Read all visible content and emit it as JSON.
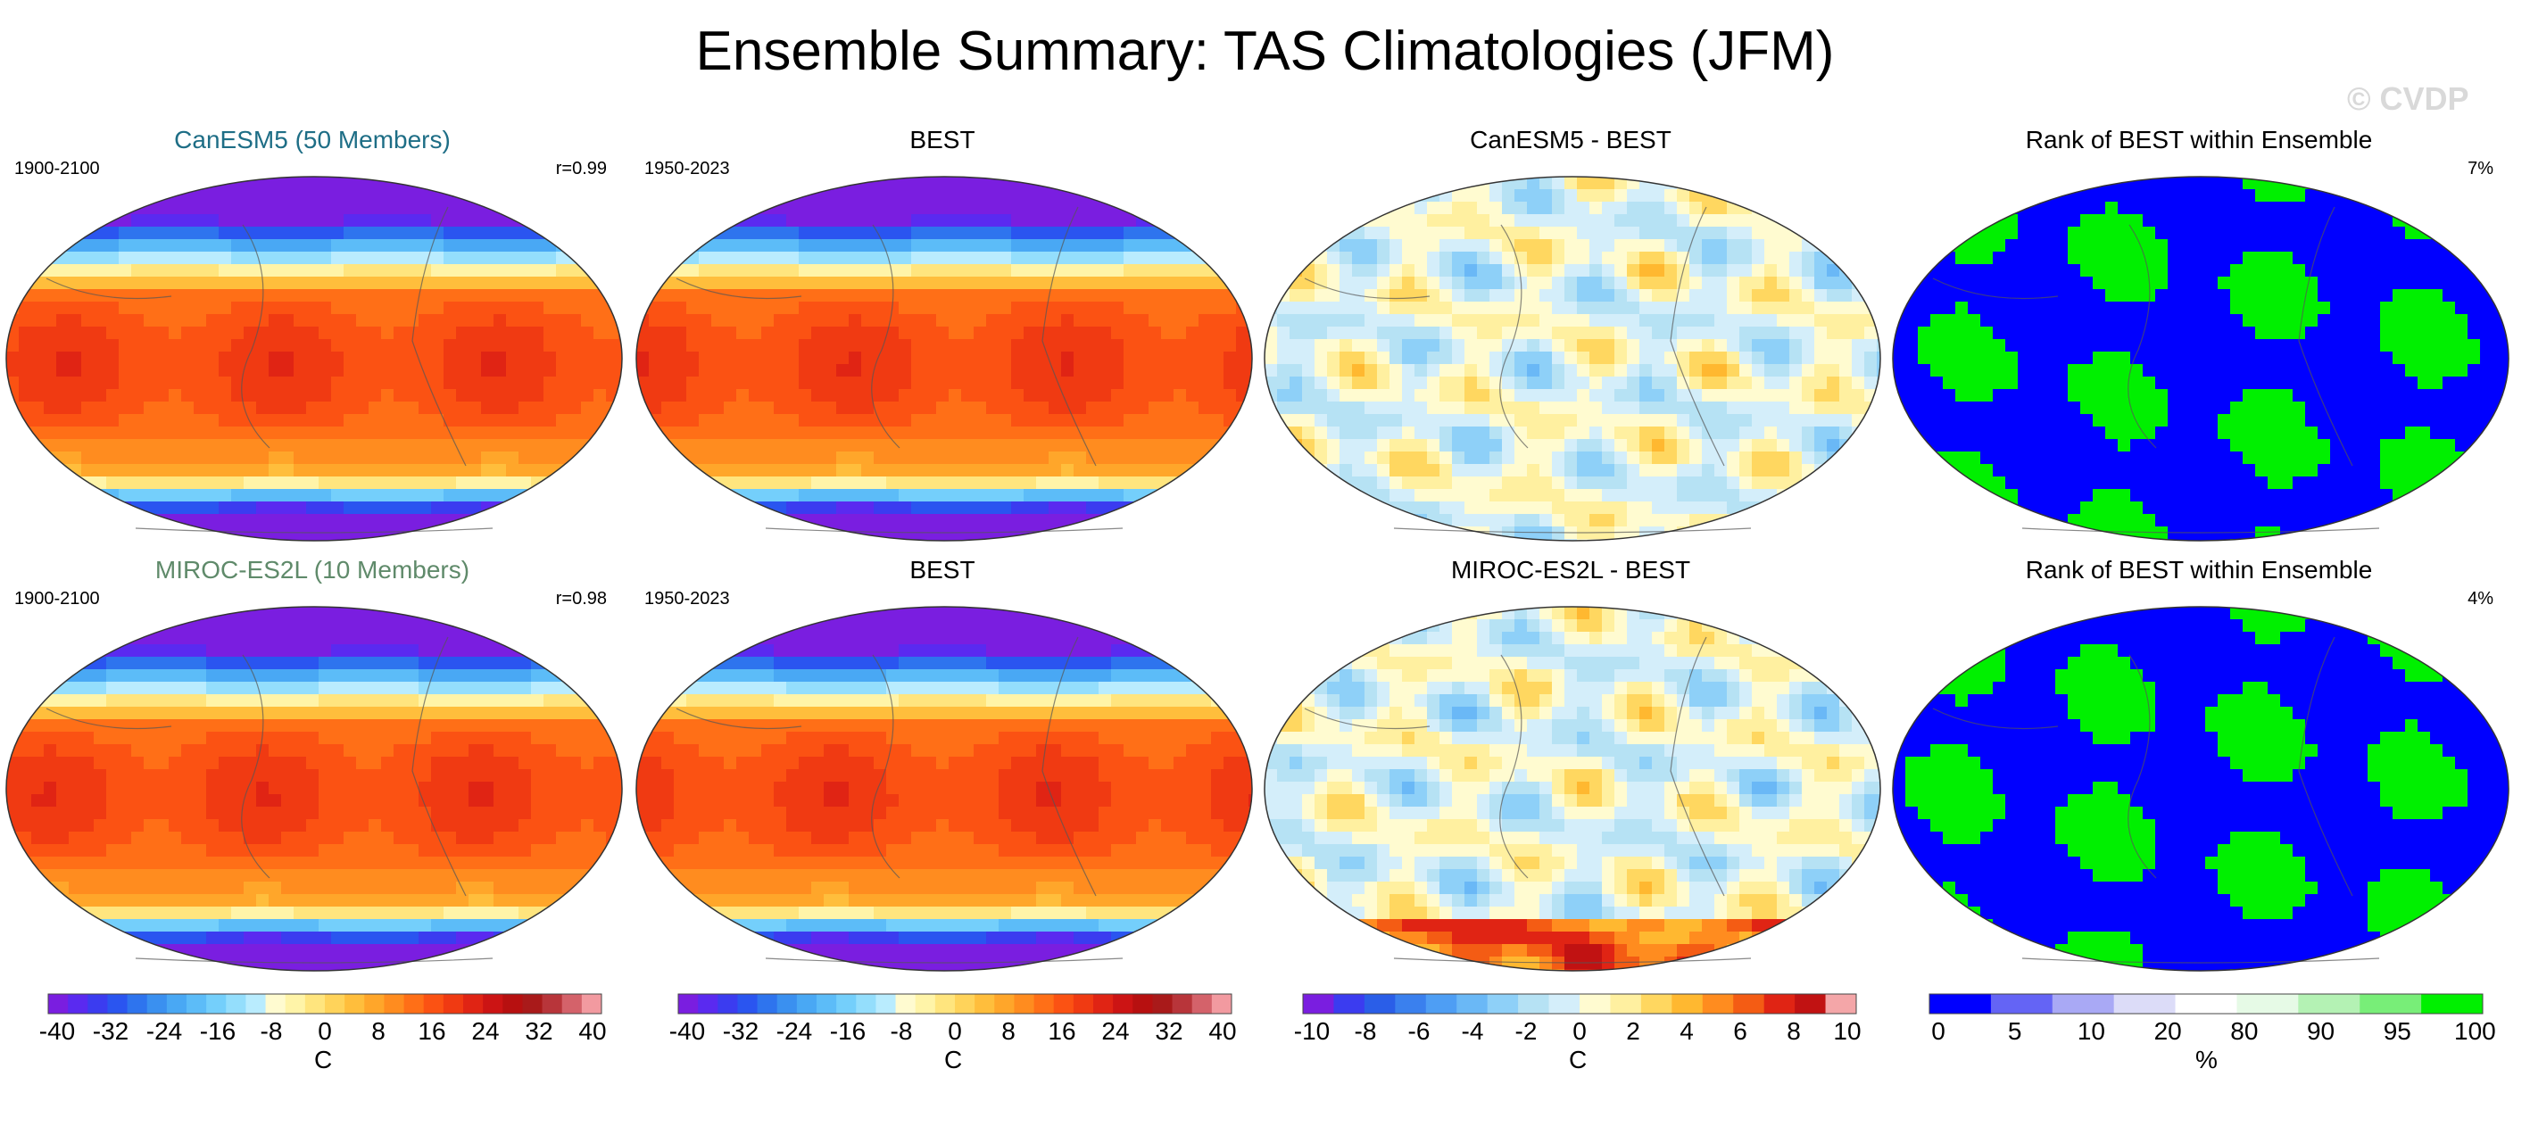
{
  "figure": {
    "title": "Ensemble Summary: TAS Climatologies (JFM)",
    "watermark": "© CVDP"
  },
  "chart_data": [
    {
      "type": "heatmap",
      "row": 1,
      "col": 1,
      "title": "CanESM5 (50 Members)",
      "title_color": "#1e6e86",
      "left_caption": "1900-2100",
      "right_caption": "r=0.99",
      "field": "climatology",
      "scale": "temp"
    },
    {
      "type": "heatmap",
      "row": 1,
      "col": 2,
      "title": "BEST",
      "title_color": "#000000",
      "left_caption": "1950-2023",
      "right_caption": "",
      "field": "climatology",
      "scale": "temp"
    },
    {
      "type": "heatmap",
      "row": 1,
      "col": 3,
      "title": "CanESM5 - BEST",
      "title_color": "#000000",
      "left_caption": "",
      "right_caption": "",
      "field": "difference",
      "scale": "diff"
    },
    {
      "type": "heatmap",
      "row": 1,
      "col": 4,
      "title": "Rank of BEST within Ensemble",
      "title_color": "#000000",
      "left_caption": "",
      "right_caption": "7%",
      "field": "rank",
      "scale": "rank"
    },
    {
      "type": "heatmap",
      "row": 2,
      "col": 1,
      "title": "MIROC-ES2L (10 Members)",
      "title_color": "#5f8a6a",
      "left_caption": "1900-2100",
      "right_caption": "r=0.98",
      "field": "climatology",
      "scale": "temp"
    },
    {
      "type": "heatmap",
      "row": 2,
      "col": 2,
      "title": "BEST",
      "title_color": "#000000",
      "left_caption": "1950-2023",
      "right_caption": "",
      "field": "climatology",
      "scale": "temp"
    },
    {
      "type": "heatmap",
      "row": 2,
      "col": 3,
      "title": "MIROC-ES2L - BEST",
      "title_color": "#000000",
      "left_caption": "",
      "right_caption": "",
      "field": "difference",
      "scale": "diff"
    },
    {
      "type": "heatmap",
      "row": 2,
      "col": 4,
      "title": "Rank of BEST within Ensemble",
      "title_color": "#000000",
      "left_caption": "",
      "right_caption": "4%",
      "field": "rank",
      "scale": "rank"
    }
  ],
  "colorbars": [
    {
      "name": "temp-colorbar-1",
      "unit": "C",
      "labels": [
        "-40",
        "-32",
        "-24",
        "-16",
        "-8",
        "0",
        "8",
        "16",
        "24",
        "32",
        "40"
      ],
      "colors": [
        "#7a1ee0",
        "#5a2af0",
        "#3b3cf0",
        "#2a55f0",
        "#2e74ee",
        "#3a90f0",
        "#49a8f4",
        "#5cbcf8",
        "#74cffb",
        "#94defc",
        "#b9ecfe",
        "#fffbd0",
        "#fff4a8",
        "#ffe57e",
        "#ffd35a",
        "#ffbe3c",
        "#ffa62a",
        "#ff8c1f",
        "#ff6f17",
        "#fb5213",
        "#f03a12",
        "#e02414",
        "#cc1414",
        "#b71010",
        "#a91a1a",
        "#b8353a",
        "#d4626a",
        "#f29aa0"
      ]
    },
    {
      "name": "temp-colorbar-2",
      "unit": "C",
      "labels": [
        "-40",
        "-32",
        "-24",
        "-16",
        "-8",
        "0",
        "8",
        "16",
        "24",
        "32",
        "40"
      ],
      "colors": [
        "#7a1ee0",
        "#5a2af0",
        "#3b3cf0",
        "#2a55f0",
        "#2e74ee",
        "#3a90f0",
        "#49a8f4",
        "#5cbcf8",
        "#74cffb",
        "#94defc",
        "#b9ecfe",
        "#fffbd0",
        "#fff4a8",
        "#ffe57e",
        "#ffd35a",
        "#ffbe3c",
        "#ffa62a",
        "#ff8c1f",
        "#ff6f17",
        "#fb5213",
        "#f03a12",
        "#e02414",
        "#cc1414",
        "#b71010",
        "#a91a1a",
        "#b8353a",
        "#d4626a",
        "#f29aa0"
      ]
    },
    {
      "name": "diff-colorbar",
      "unit": "C",
      "labels": [
        "-10",
        "-8",
        "-6",
        "-4",
        "-2",
        "0",
        "2",
        "4",
        "6",
        "8",
        "10"
      ],
      "colors": [
        "#7a1ee0",
        "#3b3cf0",
        "#2a5ee8",
        "#3a80ee",
        "#4e9ef4",
        "#6ab8f6",
        "#8ed0f8",
        "#b6e2f4",
        "#d4eefa",
        "#fffbd0",
        "#fff0a0",
        "#ffd760",
        "#ffb830",
        "#ff8c1f",
        "#f45c14",
        "#e02414",
        "#c11212",
        "#f4a6a8"
      ]
    },
    {
      "name": "rank-colorbar",
      "unit": "%",
      "labels": [
        "0",
        "5",
        "10",
        "20",
        "80",
        "90",
        "95",
        "100"
      ],
      "colors": [
        "#0000ff",
        "#6464f5",
        "#a9a9f5",
        "#dcdcf8",
        "#ffffff",
        "#e6fae6",
        "#b4f2b4",
        "#78ee78",
        "#00f000"
      ]
    }
  ]
}
